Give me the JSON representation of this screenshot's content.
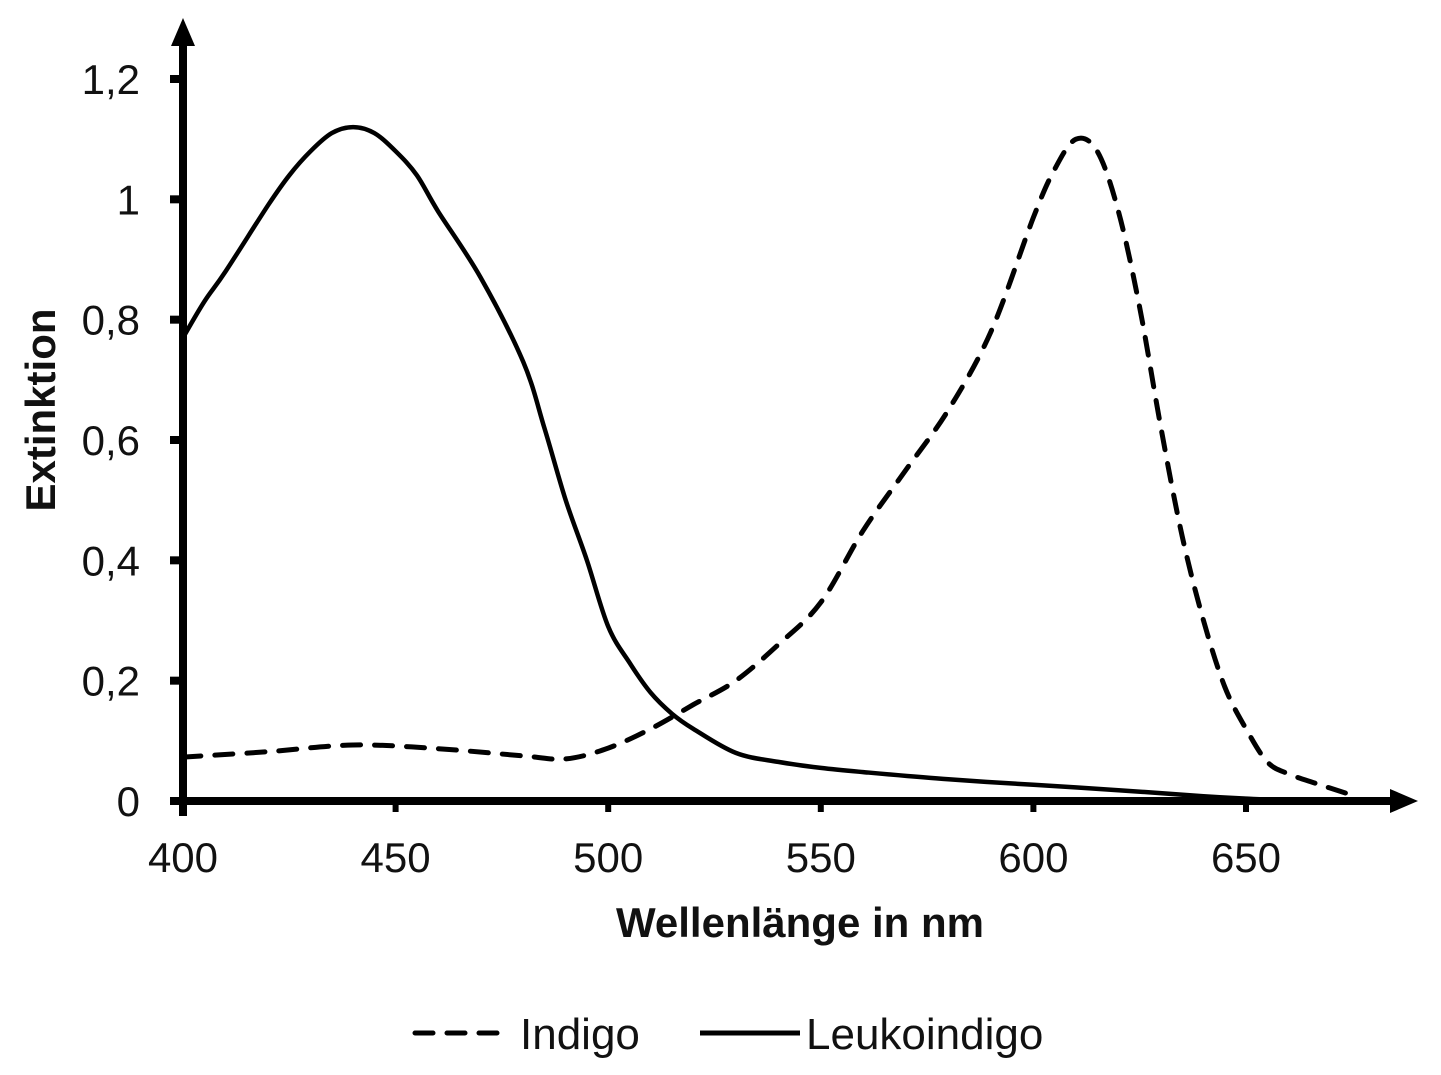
{
  "chart_data": {
    "type": "line",
    "title": "",
    "xlabel": "Wellenlänge in nm",
    "ylabel": "Extinktion",
    "xlim": [
      400,
      690
    ],
    "ylim": [
      0,
      1.27
    ],
    "x_ticks": [
      400,
      450,
      500,
      550,
      600,
      650
    ],
    "x_tick_labels": [
      "400",
      "450",
      "500",
      "550",
      "600",
      "650"
    ],
    "y_ticks": [
      0,
      0.2,
      0.4,
      0.6,
      0.8,
      1,
      1.2
    ],
    "y_tick_labels": [
      "0",
      "0,2",
      "0,4",
      "0,6",
      "0,8",
      "1",
      "1,2"
    ],
    "grid": false,
    "legend_position": "bottom",
    "series": [
      {
        "name": "Indigo",
        "style": "dashed",
        "color": "#000000",
        "x": [
          400,
          420,
          440,
          460,
          480,
          490,
          500,
          510,
          520,
          530,
          540,
          550,
          560,
          570,
          580,
          590,
          600,
          605,
          610,
          615,
          620,
          625,
          630,
          635,
          640,
          645,
          650,
          655,
          660,
          667,
          674
        ],
        "values": [
          0.073,
          0.082,
          0.093,
          0.087,
          0.075,
          0.07,
          0.088,
          0.12,
          0.16,
          0.2,
          0.26,
          0.33,
          0.45,
          0.55,
          0.65,
          0.78,
          0.97,
          1.05,
          1.1,
          1.08,
          0.98,
          0.82,
          0.62,
          0.44,
          0.3,
          0.19,
          0.12,
          0.065,
          0.045,
          0.028,
          0.012
        ]
      },
      {
        "name": "Leukoindigo",
        "style": "solid",
        "color": "#000000",
        "x": [
          400,
          405,
          410,
          420,
          425,
          430,
          435,
          440,
          445,
          450,
          455,
          460,
          470,
          480,
          485,
          490,
          495,
          500,
          505,
          510,
          515,
          520,
          530,
          540,
          550,
          560,
          580,
          600,
          620,
          640,
          650,
          660,
          670
        ],
        "values": [
          0.77,
          0.83,
          0.88,
          0.99,
          1.04,
          1.08,
          1.11,
          1.12,
          1.11,
          1.08,
          1.04,
          0.98,
          0.87,
          0.73,
          0.62,
          0.5,
          0.4,
          0.29,
          0.23,
          0.18,
          0.145,
          0.12,
          0.08,
          0.065,
          0.055,
          0.048,
          0.036,
          0.027,
          0.018,
          0.008,
          0.004,
          0.001,
          0
        ]
      }
    ]
  },
  "axes": {
    "x_title": "Wellenlänge in nm",
    "y_title": "Extinktion",
    "x_tick_labels": [
      "400",
      "450",
      "500",
      "550",
      "600",
      "650"
    ],
    "y_tick_labels": [
      "0",
      "0,2",
      "0,4",
      "0,6",
      "0,8",
      "1",
      "1,2"
    ]
  },
  "legend": {
    "items": [
      {
        "label": "Indigo",
        "style": "dashed"
      },
      {
        "label": "Leukoindigo",
        "style": "solid"
      }
    ]
  },
  "colors": {
    "axis": "#000000",
    "line": "#000000",
    "background": "#ffffff"
  }
}
